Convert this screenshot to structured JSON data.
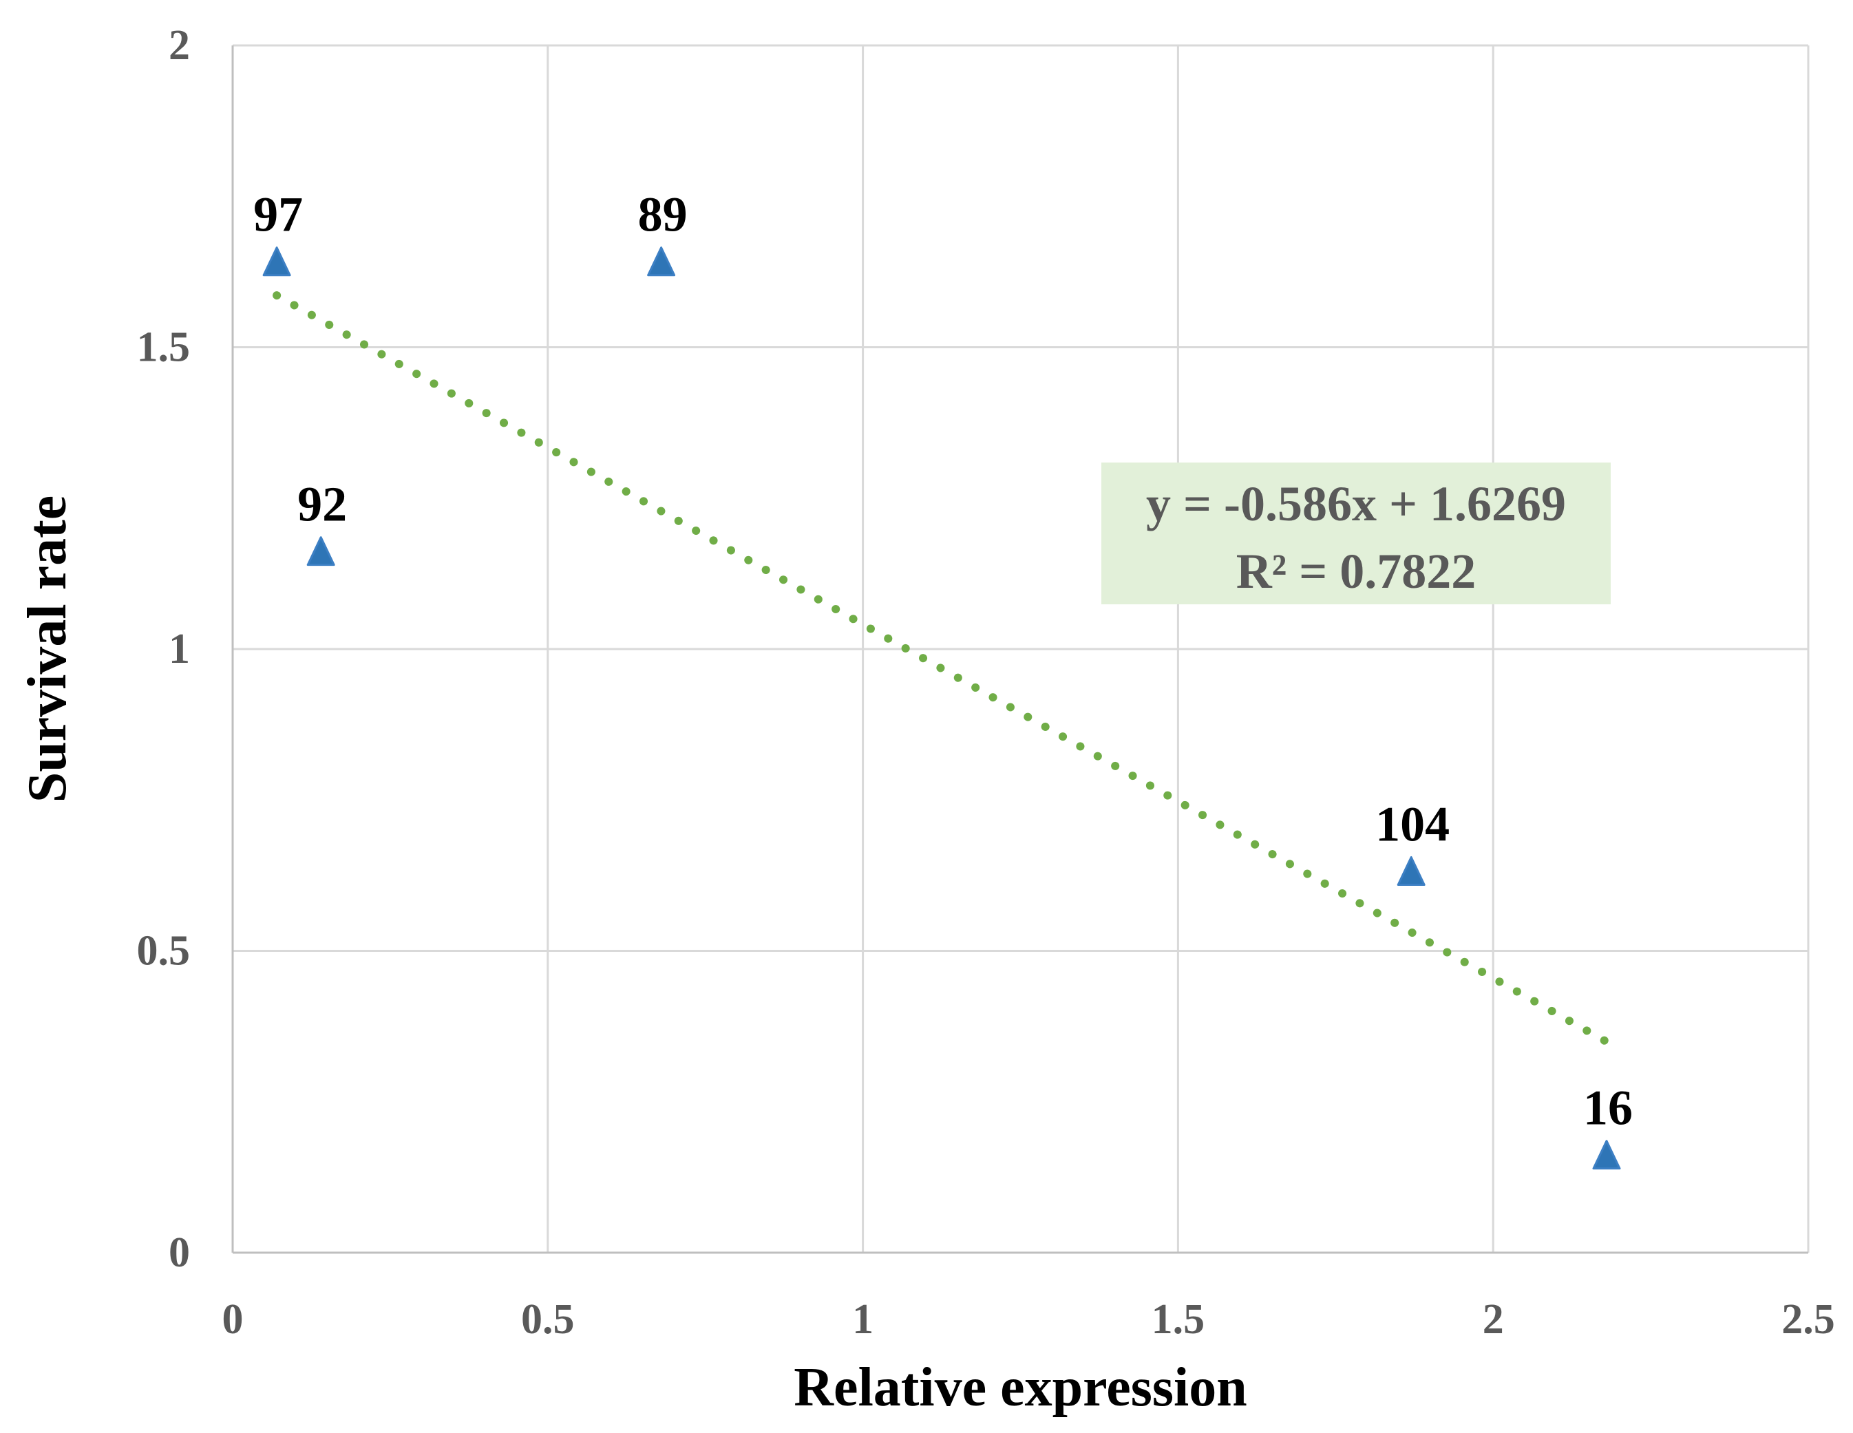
{
  "chart_data": {
    "type": "scatter",
    "title": "",
    "xlabel": "Relative expression",
    "ylabel": "Survival rate",
    "xlim": [
      0,
      2.5
    ],
    "ylim": [
      0,
      2
    ],
    "x_ticks": [
      0,
      0.5,
      1,
      1.5,
      2,
      2.5
    ],
    "x_tick_labels": [
      "0",
      "0.5",
      "1",
      "1.5",
      "2",
      "2.5"
    ],
    "y_ticks": [
      0,
      0.5,
      1,
      1.5,
      2
    ],
    "y_tick_labels": [
      "0",
      "0.5",
      "1",
      "1.5",
      "2"
    ],
    "grid": true,
    "series": [
      {
        "name": "samples",
        "marker": "triangle",
        "color": "#2e75b6",
        "points": [
          {
            "x": 0.07,
            "y": 1.64,
            "label": "97"
          },
          {
            "x": 0.14,
            "y": 1.16,
            "label": "92"
          },
          {
            "x": 0.68,
            "y": 1.64,
            "label": "89"
          },
          {
            "x": 1.87,
            "y": 0.63,
            "label": "104"
          },
          {
            "x": 2.18,
            "y": 0.16,
            "label": "16"
          }
        ]
      }
    ],
    "trendline": {
      "type": "linear",
      "slope": -0.586,
      "intercept": 1.6269,
      "x_range": [
        0.07,
        2.18
      ],
      "color": "#70ad47",
      "style": "dotted",
      "equation_text": "y = -0.586x + 1.6269",
      "r2_text": "R² = 0.7822",
      "label_background": "#e2f0d9"
    },
    "colors": {
      "grid": "#d9d9d9",
      "axis_line": "#bfbfbf",
      "tick_text": "#595959",
      "title_text": "#000000"
    }
  }
}
